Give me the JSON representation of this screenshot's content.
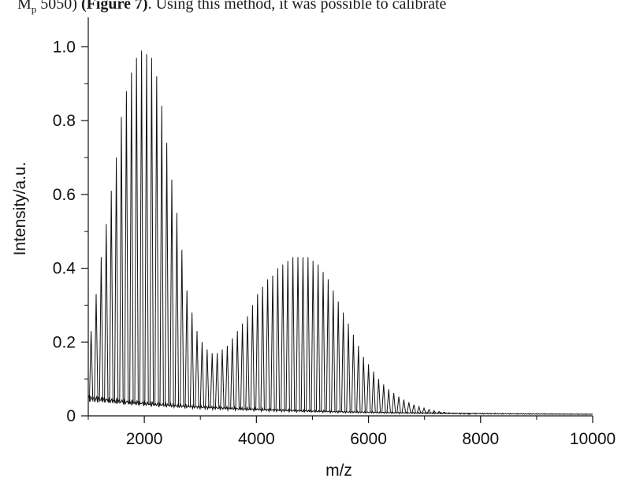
{
  "caption": {
    "prefix": "M",
    "sub": "p",
    "number": " 5050) ",
    "bold": "(Figure 7)",
    "rest": ". Using this method, it was possible to calibrate"
  },
  "chart_data": {
    "type": "line",
    "xlabel": "m/z",
    "ylabel": "Intensity/a.u.",
    "xlim": [
      1000,
      10000
    ],
    "ylim": [
      0,
      1.08
    ],
    "x_ticks": [
      2000,
      4000,
      6000,
      8000,
      10000
    ],
    "x_tick_labels": [
      "2000",
      "4000",
      "6000",
      "8000",
      "10000"
    ],
    "y_ticks": [
      0,
      0.2,
      0.4,
      0.6,
      0.8,
      1.0
    ],
    "y_tick_labels": [
      "0",
      "0.2",
      "0.4",
      "0.6",
      "0.8",
      "1.0"
    ],
    "grid": false,
    "legend": "none",
    "line_color": "#111111",
    "series": [
      {
        "x": [
          1050,
          1140,
          1230,
          1320,
          1410,
          1500,
          1590,
          1680,
          1770,
          1860,
          1950,
          2040,
          2130,
          2220,
          2310,
          2400,
          2490,
          2580,
          2670,
          2760,
          2850,
          2940,
          3030,
          3120,
          3210,
          3300,
          3390,
          3480,
          3570,
          3660,
          3750,
          3840,
          3930,
          4020,
          4110,
          4200,
          4290,
          4380,
          4470,
          4560,
          4650,
          4740,
          4830,
          4920,
          5010,
          5100,
          5190,
          5280,
          5370,
          5460,
          5550,
          5640,
          5730,
          5820,
          5910,
          6000,
          6090,
          6180,
          6270,
          6360,
          6450,
          6540,
          6630,
          6720,
          6810,
          6900,
          6990,
          7080,
          7170,
          7260,
          7350,
          7440,
          7530,
          7620,
          7710,
          7800
        ],
        "values": [
          0.23,
          0.33,
          0.43,
          0.52,
          0.61,
          0.7,
          0.81,
          0.88,
          0.93,
          0.97,
          0.99,
          0.98,
          0.97,
          0.92,
          0.84,
          0.74,
          0.64,
          0.55,
          0.45,
          0.34,
          0.28,
          0.23,
          0.2,
          0.18,
          0.17,
          0.17,
          0.18,
          0.19,
          0.21,
          0.23,
          0.25,
          0.27,
          0.3,
          0.33,
          0.35,
          0.37,
          0.38,
          0.4,
          0.41,
          0.42,
          0.43,
          0.43,
          0.43,
          0.43,
          0.42,
          0.41,
          0.39,
          0.37,
          0.34,
          0.31,
          0.28,
          0.25,
          0.22,
          0.19,
          0.16,
          0.14,
          0.12,
          0.1,
          0.085,
          0.072,
          0.062,
          0.052,
          0.044,
          0.037,
          0.03,
          0.025,
          0.021,
          0.017,
          0.014,
          0.012,
          0.01,
          0.008,
          0.007,
          0.006,
          0.005,
          0.004
        ]
      }
    ]
  }
}
